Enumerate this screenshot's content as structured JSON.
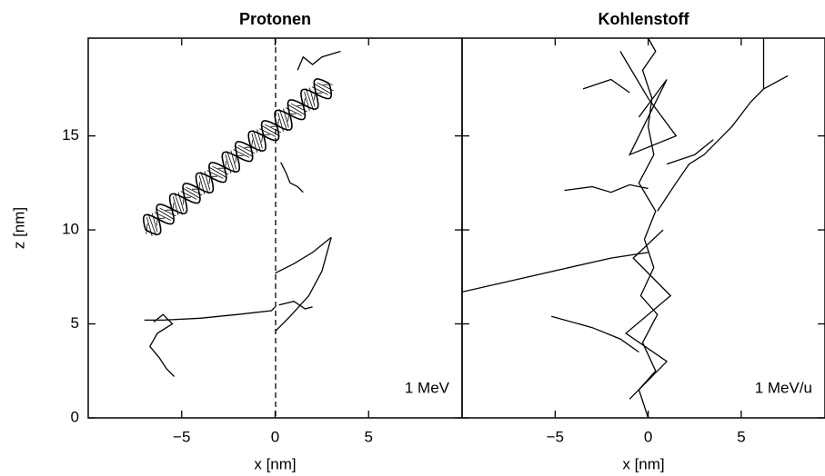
{
  "chart_data": [
    {
      "type": "line",
      "title": "Protonen",
      "x_label": "x [nm]",
      "y_label": "z [nm]",
      "annotation": "1 MeV",
      "xlim": [
        -10,
        10
      ],
      "ylim": [
        0,
        20.2
      ],
      "xticks": [
        {
          "value": -5,
          "label": "−5"
        },
        0,
        5
      ],
      "yticks": [
        0,
        5,
        10,
        15
      ],
      "series": [
        {
          "color": "#000000",
          "x": [
            -7,
            -6,
            -4,
            -2,
            -0.2,
            0
          ],
          "values": [
            5.2,
            5.2,
            5.3,
            5.5,
            5.7,
            5.9
          ]
        },
        {
          "color": "#000000",
          "x": [
            -6.5,
            -6,
            -5.5,
            -6.3,
            -6.7,
            -6.2,
            -5.8,
            -5.4
          ],
          "values": [
            5.1,
            5.5,
            5.0,
            4.5,
            3.8,
            3.2,
            2.6,
            2.2
          ]
        },
        {
          "color": "#000000",
          "x": [
            0,
            1,
            2,
            3
          ],
          "values": [
            7.7,
            8.2,
            8.8,
            9.6
          ]
        },
        {
          "color": "#000000",
          "x": [
            0,
            0.8,
            1.8,
            2.5,
            3
          ],
          "values": [
            4.6,
            5.4,
            6.5,
            7.8,
            9.6
          ]
        },
        {
          "color": "#000000",
          "x": [
            0.2,
            1,
            1.6,
            2
          ],
          "values": [
            6,
            6.2,
            5.8,
            5.9
          ]
        },
        {
          "color": "#000000",
          "x": [
            1.2,
            1.5,
            2,
            2.5,
            3.5
          ],
          "values": [
            18.5,
            19.2,
            18.8,
            19.2,
            19.5
          ]
        },
        {
          "color": "#000000",
          "x": [
            0.3,
            0.6,
            0.8,
            1.2,
            1.5
          ],
          "values": [
            13.6,
            13,
            12.5,
            12.3,
            12
          ]
        }
      ]
    },
    {
      "type": "line",
      "title": "Kohlenstoff",
      "x_label": "x [nm]",
      "annotation": "1 MeV/u",
      "xlim": [
        -10,
        9.5
      ],
      "ylim": [
        0,
        20.2
      ],
      "xticks": [
        {
          "value": -5,
          "label": "−5"
        },
        0,
        5
      ],
      "yticks": [
        0,
        5,
        10,
        15
      ],
      "series": [
        {
          "color": "#000000",
          "x": [
            0,
            -0.5,
            0.4,
            -0.3,
            0.5,
            -0.4,
            0.3,
            -0.2,
            0.4,
            -0.5,
            0.3,
            0,
            0.2,
            -0.3,
            0.4,
            0
          ],
          "values": [
            0,
            1.5,
            2.5,
            4,
            5.5,
            6.5,
            8,
            9.5,
            11,
            12.5,
            14,
            15.5,
            17,
            18.5,
            19.5,
            20.2
          ]
        },
        {
          "color": "#000000",
          "x": [
            -10,
            -6,
            -2,
            0
          ],
          "values": [
            6.7,
            7.6,
            8.5,
            8.8
          ]
        },
        {
          "color": "#000000",
          "x": [
            0.5,
            1.5,
            2.2,
            3,
            4.5,
            5.5,
            6.2,
            7.5
          ],
          "values": [
            11,
            12.5,
            13.5,
            14,
            15.5,
            16.8,
            17.5,
            18.2
          ]
        },
        {
          "color": "#000000",
          "x": [
            6.2,
            6.2
          ],
          "values": [
            17.5,
            20.2
          ]
        },
        {
          "color": "#000000",
          "x": [
            -5.2,
            -3,
            -1.5,
            -0.5
          ],
          "values": [
            5.4,
            4.8,
            4.2,
            3.5
          ]
        },
        {
          "color": "#000000",
          "x": [
            -4.5,
            -3,
            -2,
            -1,
            0
          ],
          "values": [
            12.1,
            12.3,
            12,
            12.4,
            12.2
          ]
        },
        {
          "color": "#000000",
          "x": [
            -1.5,
            0,
            1.5,
            -1,
            1,
            -0.5
          ],
          "values": [
            19.5,
            17,
            15,
            14,
            18,
            16
          ]
        },
        {
          "color": "#000000",
          "x": [
            -1,
            1,
            -1.2,
            1.2,
            -0.8,
            0.8
          ],
          "values": [
            1,
            3,
            4.5,
            6.5,
            8.5,
            10
          ]
        },
        {
          "color": "#000000",
          "x": [
            1,
            2.5,
            3.5
          ],
          "values": [
            13.5,
            14,
            14.8
          ]
        },
        {
          "color": "#000000",
          "x": [
            -3.5,
            -2,
            -1
          ],
          "values": [
            17.5,
            18,
            17.3
          ]
        }
      ]
    }
  ]
}
